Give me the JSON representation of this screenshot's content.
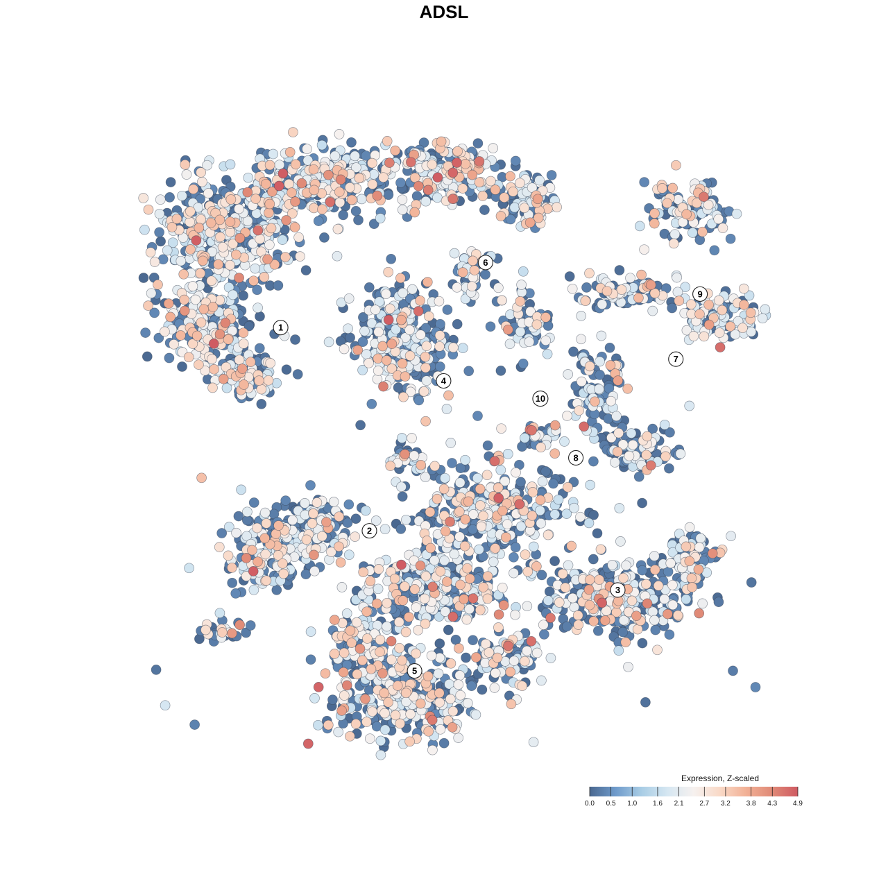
{
  "chart_data": {
    "type": "scatter",
    "title": "ADSL",
    "xlabel": "",
    "ylabel": "",
    "grid": false,
    "legend": {
      "title": "Expression, Z-scaled",
      "placement": "bottom-right",
      "ticks": [
        "0.0",
        "0.5",
        "1.0",
        "1.6",
        "2.1",
        "2.7",
        "3.2",
        "3.8",
        "4.3",
        "4.9"
      ],
      "range": [
        0.0,
        4.9
      ],
      "colors": [
        "#4a6890",
        "#6f9bcb",
        "#a9cde5",
        "#d6e7f2",
        "#f6f1ef",
        "#f9d9c7",
        "#f2b196",
        "#e08a77",
        "#cf5a62"
      ]
    },
    "clusters": [
      {
        "label": "1",
        "x": -1.12,
        "y": 0.59
      },
      {
        "label": "2",
        "x": -0.57,
        "y": -0.44
      },
      {
        "label": "3",
        "x": 0.97,
        "y": -0.74
      },
      {
        "label": "4",
        "x": -0.11,
        "y": 0.32
      },
      {
        "label": "5",
        "x": -0.29,
        "y": -1.15
      },
      {
        "label": "6",
        "x": 0.15,
        "y": 0.92
      },
      {
        "label": "7",
        "x": 1.33,
        "y": 0.43
      },
      {
        "label": "8",
        "x": 0.71,
        "y": -0.07
      },
      {
        "label": "9",
        "x": 1.48,
        "y": 0.76
      },
      {
        "label": "10",
        "x": 0.49,
        "y": 0.23
      }
    ],
    "xlim": [
      -2.0,
      2.0
    ],
    "ylim": [
      -1.6,
      1.6
    ]
  }
}
